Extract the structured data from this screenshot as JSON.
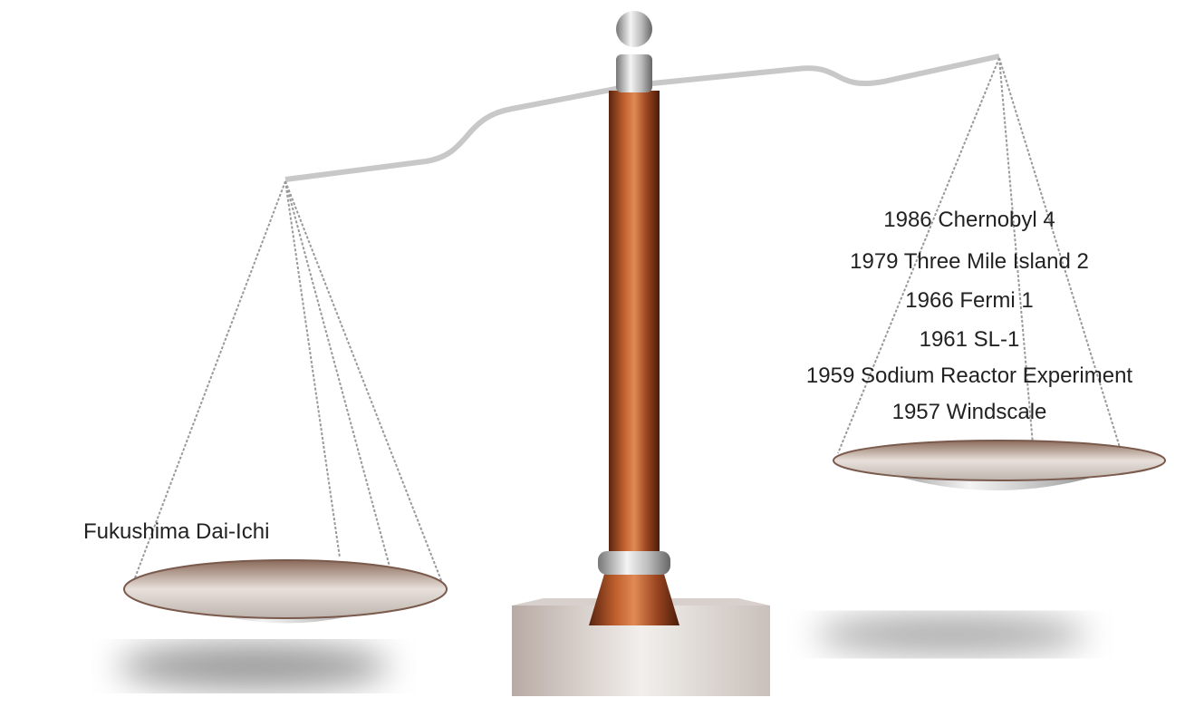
{
  "left_pan": {
    "labels": [
      "Fukushima Dai-Ichi"
    ]
  },
  "right_pan": {
    "labels": [
      "1986 Chernobyl 4",
      "1979 Three Mile Island 2",
      "1966 Fermi 1",
      "1961 SL-1",
      "1959 Sodium Reactor Experiment",
      "1957 Windscale"
    ]
  }
}
